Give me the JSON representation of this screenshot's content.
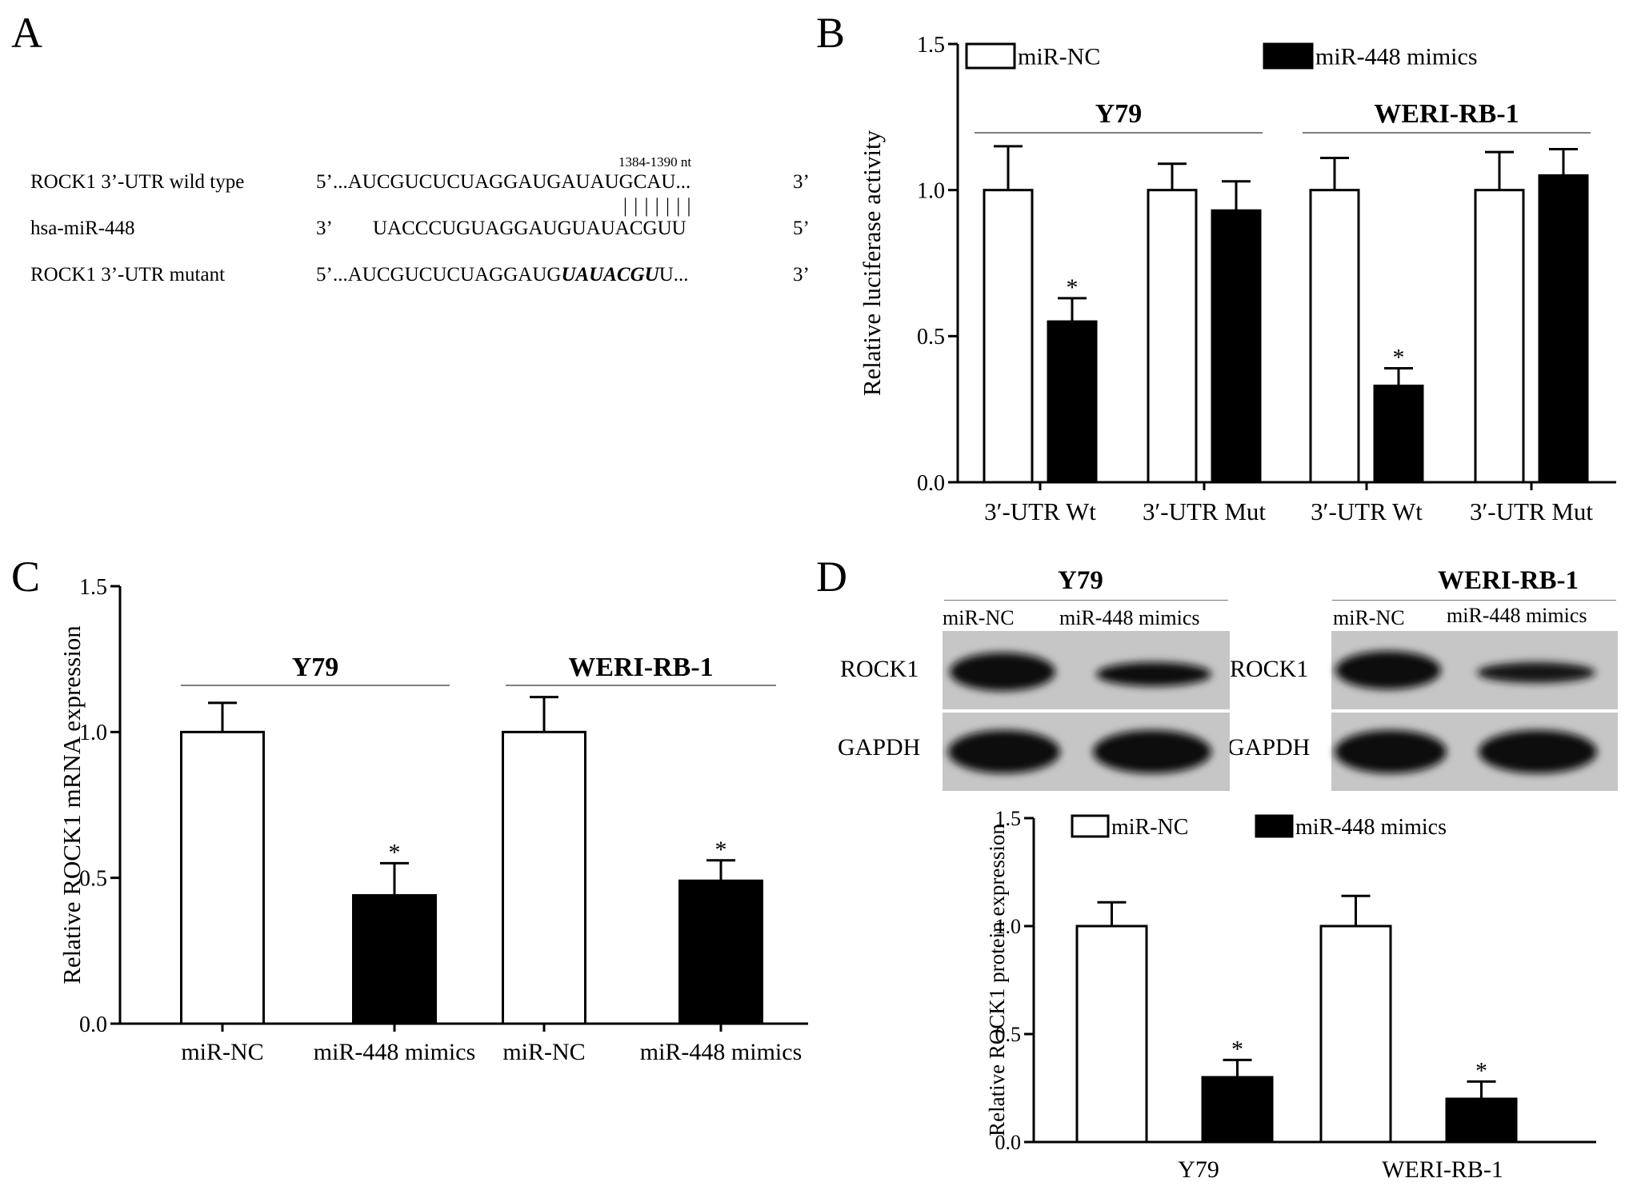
{
  "panels": {
    "A": "A",
    "B": "B",
    "C": "C",
    "D": "D"
  },
  "panel_a": {
    "position_note": "1384-1390 nt",
    "pairing_bars": "| | | | | | |",
    "rows": [
      {
        "label": "ROCK1 3’-UTR wild type",
        "end5": "5’",
        "sequence": "...AUCGUCUCUAGGAUGAUAUGCAU...",
        "end3": "3’"
      },
      {
        "label": "hsa-miR-448",
        "end5": "3’",
        "sequence": "UACCCUGUAGGAUGUAUACGUU",
        "end3": "5’"
      },
      {
        "label": "ROCK1 3’-UTR mutant",
        "end5": "5’",
        "sequence_prefix": "...AUCGUCUCUAGGAUG",
        "sequence_mut": "UAUACGU",
        "sequence_suffix": "U...",
        "end3": "3’"
      }
    ]
  },
  "panel_d_blot": {
    "groups": [
      {
        "title": "Y79",
        "lanes": [
          "miR-NC",
          "miR-448 mimics"
        ]
      },
      {
        "title": "WERI-RB-1",
        "lanes": [
          "miR-NC",
          "miR-448 mimics"
        ]
      }
    ],
    "rows": [
      "ROCK1",
      "GAPDH"
    ]
  },
  "colors": {
    "nc": "#ffffff",
    "mimics": "#000000",
    "axis": "#000000",
    "blot_bg": "#c8c8c8",
    "band": "#0c0c0c"
  },
  "chart_data": [
    {
      "id": "B",
      "type": "bar",
      "ylabel": "Relative luciferase activity",
      "ylim": [
        0,
        1.5
      ],
      "yticks": [
        "0.0",
        "0.5",
        "1.0",
        "1.5"
      ],
      "categories": [
        "3′-UTR Wt",
        "3′-UTR Mut",
        "3′-UTR Wt",
        "3′-UTR Mut"
      ],
      "groups": [
        {
          "label": "Y79",
          "categories": [
            0,
            1
          ]
        },
        {
          "label": "WERI-RB-1",
          "categories": [
            2,
            3
          ]
        }
      ],
      "legend": {
        "position": "top",
        "entries": [
          "miR-NC",
          "miR-448 mimics"
        ]
      },
      "series": [
        {
          "name": "miR-NC",
          "color": "#ffffff",
          "values": [
            1.0,
            1.0,
            1.0,
            1.0
          ],
          "errors": [
            0.15,
            0.09,
            0.11,
            0.13
          ]
        },
        {
          "name": "miR-448 mimics",
          "color": "#000000",
          "values": [
            0.55,
            0.93,
            0.33,
            1.05
          ],
          "errors": [
            0.08,
            0.1,
            0.06,
            0.09
          ]
        }
      ],
      "significance": [
        {
          "series": 1,
          "category": 0,
          "mark": "*"
        },
        {
          "series": 1,
          "category": 2,
          "mark": "*"
        }
      ]
    },
    {
      "id": "C",
      "type": "bar",
      "ylabel": "Relative ROCK1 mRNA expression",
      "ylim": [
        0,
        1.5
      ],
      "yticks": [
        "0.0",
        "0.5",
        "1.0",
        "1.5"
      ],
      "categories": [
        "miR-NC",
        "miR-448 mimics",
        "miR-NC",
        "miR-448 mimics"
      ],
      "groups": [
        {
          "label": "Y79",
          "categories": [
            0,
            1
          ]
        },
        {
          "label": "WERI-RB-1",
          "categories": [
            2,
            3
          ]
        }
      ],
      "bars": [
        {
          "category": 0,
          "value": 1.0,
          "error": 0.1,
          "color": "#ffffff"
        },
        {
          "category": 1,
          "value": 0.44,
          "error": 0.11,
          "color": "#000000"
        },
        {
          "category": 2,
          "value": 1.0,
          "error": 0.12,
          "color": "#ffffff"
        },
        {
          "category": 3,
          "value": 0.49,
          "error": 0.07,
          "color": "#000000"
        }
      ],
      "significance": [
        {
          "category": 1,
          "mark": "*"
        },
        {
          "category": 3,
          "mark": "*"
        }
      ]
    },
    {
      "id": "D",
      "type": "bar",
      "ylabel": "Relative ROCK1 protein expression",
      "ylim": [
        0,
        1.5
      ],
      "yticks": [
        "0.0",
        "0.5",
        "1.0",
        "1.5"
      ],
      "categories": [
        "Y79",
        "WERI-RB-1"
      ],
      "legend": {
        "position": "top",
        "entries": [
          "miR-NC",
          "miR-448 mimics"
        ]
      },
      "series": [
        {
          "name": "miR-NC",
          "color": "#ffffff",
          "values": [
            1.0,
            1.0
          ],
          "errors": [
            0.11,
            0.14
          ]
        },
        {
          "name": "miR-448 mimics",
          "color": "#000000",
          "values": [
            0.3,
            0.2
          ],
          "errors": [
            0.08,
            0.08
          ]
        }
      ],
      "significance": [
        {
          "series": 1,
          "category": 0,
          "mark": "*"
        },
        {
          "series": 1,
          "category": 1,
          "mark": "*"
        }
      ]
    }
  ]
}
